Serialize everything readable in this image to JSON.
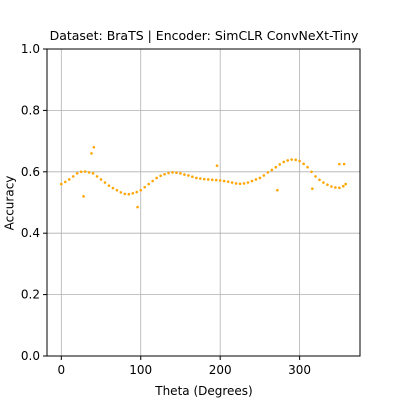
{
  "chart_data": {
    "type": "scatter",
    "title": "Dataset: BraTS | Encoder: SimCLR ConvNeXt-Tiny",
    "x_label": "Theta (Degrees)",
    "y_label": "Accuracy",
    "series": [
      {
        "color": "#ffa500",
        "x": [
          0,
          5,
          10,
          15,
          20,
          25,
          30,
          35,
          40,
          45,
          50,
          55,
          60,
          65,
          70,
          75,
          80,
          85,
          90,
          95,
          100,
          105,
          110,
          115,
          120,
          125,
          130,
          135,
          140,
          145,
          150,
          155,
          160,
          165,
          170,
          175,
          180,
          185,
          190,
          195,
          200,
          205,
          210,
          215,
          220,
          225,
          230,
          235,
          240,
          245,
          250,
          255,
          260,
          265,
          270,
          275,
          280,
          285,
          290,
          295,
          300,
          305,
          310,
          315,
          320,
          325,
          330,
          335,
          340,
          345,
          350,
          355,
          358,
          28,
          38,
          41,
          96,
          196,
          272,
          316,
          350,
          356
        ],
        "values": [
          0.56,
          0.567,
          0.575,
          0.585,
          0.595,
          0.6,
          0.601,
          0.598,
          0.595,
          0.585,
          0.575,
          0.565,
          0.555,
          0.547,
          0.54,
          0.533,
          0.528,
          0.527,
          0.53,
          0.534,
          0.54,
          0.55,
          0.56,
          0.57,
          0.58,
          0.587,
          0.592,
          0.596,
          0.598,
          0.597,
          0.595,
          0.591,
          0.588,
          0.584,
          0.58,
          0.578,
          0.576,
          0.575,
          0.574,
          0.573,
          0.572,
          0.57,
          0.568,
          0.565,
          0.562,
          0.561,
          0.562,
          0.565,
          0.57,
          0.575,
          0.58,
          0.588,
          0.598,
          0.606,
          0.615,
          0.624,
          0.632,
          0.637,
          0.64,
          0.639,
          0.635,
          0.626,
          0.615,
          0.6,
          0.585,
          0.574,
          0.565,
          0.558,
          0.552,
          0.549,
          0.548,
          0.553,
          0.56,
          0.52,
          0.66,
          0.68,
          0.485,
          0.62,
          0.54,
          0.545,
          0.625,
          0.625
        ]
      }
    ],
    "xlim": [
      -18,
      376
    ],
    "ylim": [
      0,
      1
    ],
    "xticks": [
      0,
      100,
      200,
      300
    ],
    "yticks": [
      {
        "value": 0,
        "label": "0.0"
      },
      {
        "value": 0.2,
        "label": "0.2"
      },
      {
        "value": 0.4,
        "label": "0.4"
      },
      {
        "value": 0.6,
        "label": "0.6"
      },
      {
        "value": 0.8,
        "label": "0.8"
      },
      {
        "value": 1,
        "label": "1.0"
      }
    ],
    "grid": true
  }
}
